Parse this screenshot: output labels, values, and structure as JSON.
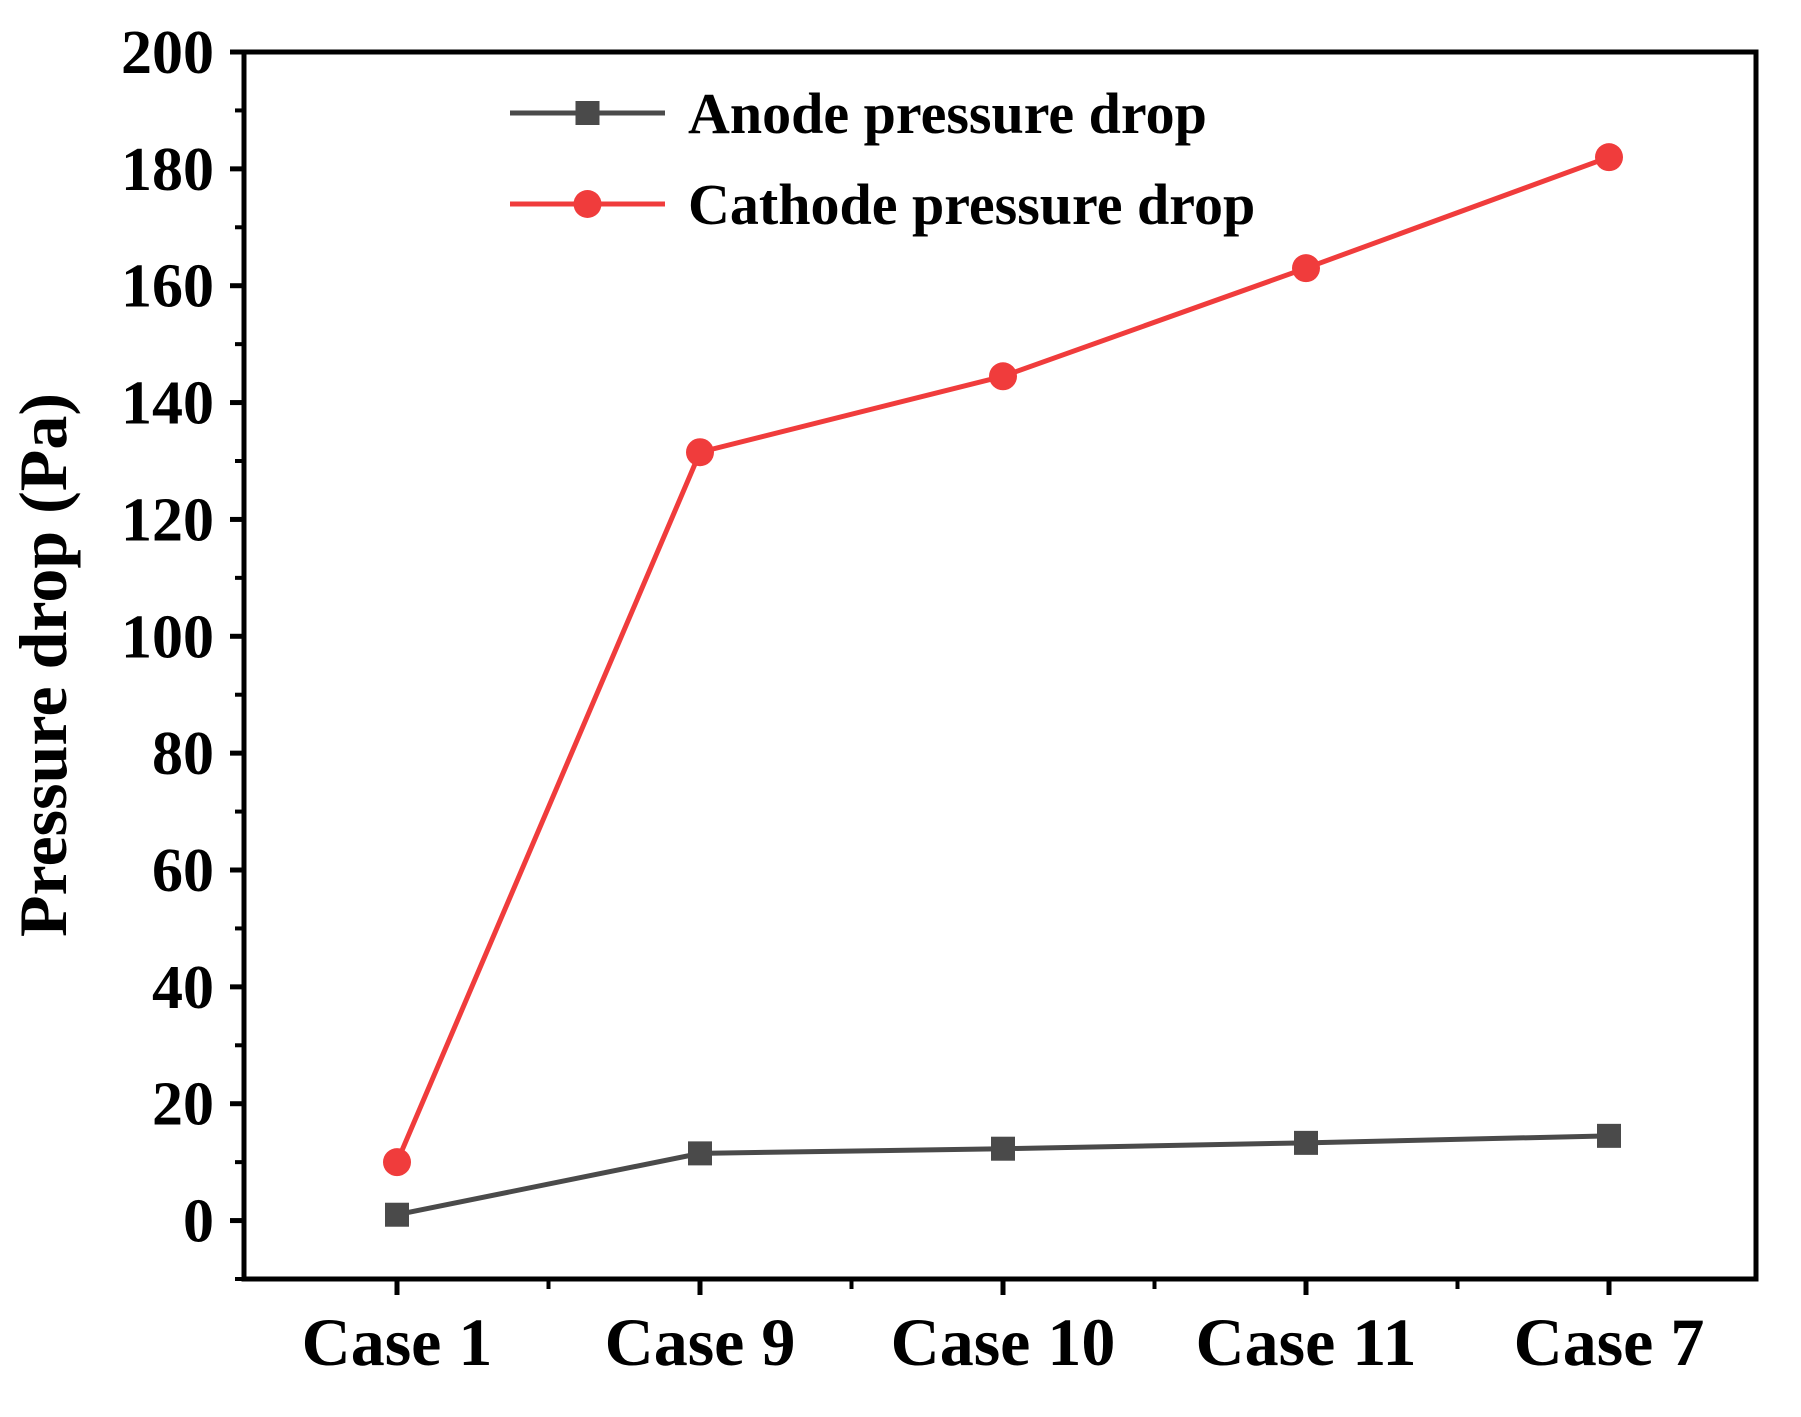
{
  "chart_data": {
    "type": "line",
    "title": "",
    "xlabel": "",
    "ylabel": "Pressure drop (Pa)",
    "ylim": [
      -10,
      200
    ],
    "yticks": [
      0,
      20,
      40,
      60,
      80,
      100,
      120,
      140,
      160,
      180,
      200
    ],
    "categories": [
      "Case 1",
      "Case 9",
      "Case 10",
      "Case 11",
      "Case 7"
    ],
    "legend_position": "top-center",
    "series": [
      {
        "name": "Anode pressure drop",
        "color": "#4a4a4a",
        "marker": "square",
        "values": [
          1,
          11.5,
          12.3,
          13.3,
          14.5
        ]
      },
      {
        "name": "Cathode pressure drop",
        "color": "#f03c3c",
        "marker": "circle",
        "values": [
          10,
          131.5,
          144.5,
          163,
          182
        ]
      }
    ]
  }
}
